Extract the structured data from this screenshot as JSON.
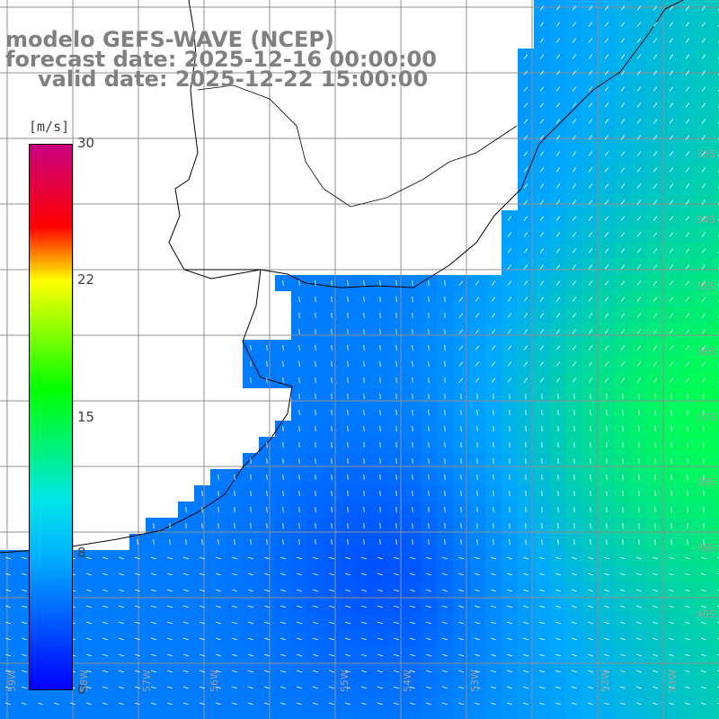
{
  "title": {
    "line1": "modelo GEFS-WAVE (NCEP)",
    "line2": "forecast date: 2025-12-16 00:00:00",
    "line3": "valid date: 2025-12-22 15:00:00"
  },
  "colorbar": {
    "unit": "[m/s]",
    "ticks": [
      "30",
      "22",
      "15",
      "8",
      "0"
    ],
    "colors": [
      "#0000ff",
      "#00b4ff",
      "#00e6e6",
      "#00ff00",
      "#ffff00",
      "#ff0000",
      "#c80080"
    ]
  },
  "lon_labels": [
    "59W",
    "58W",
    "57W",
    "56W",
    "55W",
    "54W",
    "53W",
    "52W",
    "51W"
  ],
  "lat_labels": [
    "33S",
    "34S",
    "35S",
    "36S",
    "37S",
    "38S",
    "39S",
    "40S"
  ]
}
